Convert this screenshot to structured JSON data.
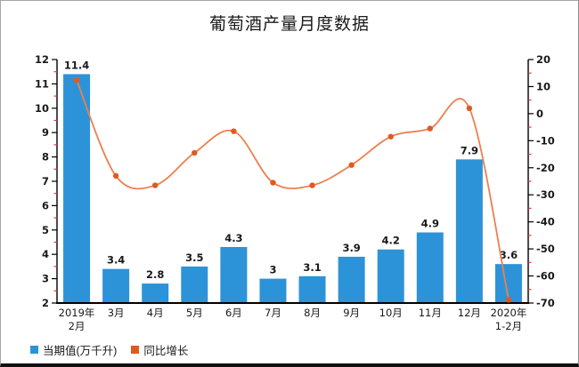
{
  "chart_data": {
    "type": "combo-bar-line",
    "title": "葡萄酒产量月度数据",
    "categories": [
      [
        "2019年",
        "2月"
      ],
      [
        "3月"
      ],
      [
        "4月"
      ],
      [
        "5月"
      ],
      [
        "6月"
      ],
      [
        "7月"
      ],
      [
        "8月"
      ],
      [
        "9月"
      ],
      [
        "10月"
      ],
      [
        "11月"
      ],
      [
        "12月"
      ],
      [
        "2020年",
        "1-2月"
      ]
    ],
    "series": [
      {
        "name": "当期值(万千升)",
        "type": "bar",
        "axis": "left",
        "color": "#2D93D8",
        "values": [
          11.4,
          3.4,
          2.8,
          3.5,
          4.3,
          3,
          3.1,
          3.9,
          4.2,
          4.9,
          7.9,
          3.6
        ],
        "labels": [
          "11.4",
          "3.4",
          "2.8",
          "3.5",
          "4.3",
          "3",
          "3.1",
          "3.9",
          "4.2",
          "4.9",
          "7.9",
          "3.6"
        ]
      },
      {
        "name": "同比增长",
        "type": "line",
        "axis": "right",
        "color": "#EC7F50",
        "marker_color": "#E05A1E",
        "values": [
          12.4,
          -23,
          -26.5,
          -14.5,
          -6.5,
          -25.5,
          -26.5,
          -19,
          -8.5,
          -5.5,
          2,
          -68.8
        ]
      }
    ],
    "left_axis": {
      "min": 2,
      "max": 12,
      "major_step": 1,
      "minor_step": 0.5
    },
    "right_axis": {
      "min": -70,
      "max": 20,
      "major_step": 10,
      "minor_step": 5
    },
    "axis_color": "#000000",
    "minor_tick_color": "#E03A3A",
    "label_color": "#1a1a1a",
    "grid": false,
    "legend_position": "bottom-left"
  }
}
